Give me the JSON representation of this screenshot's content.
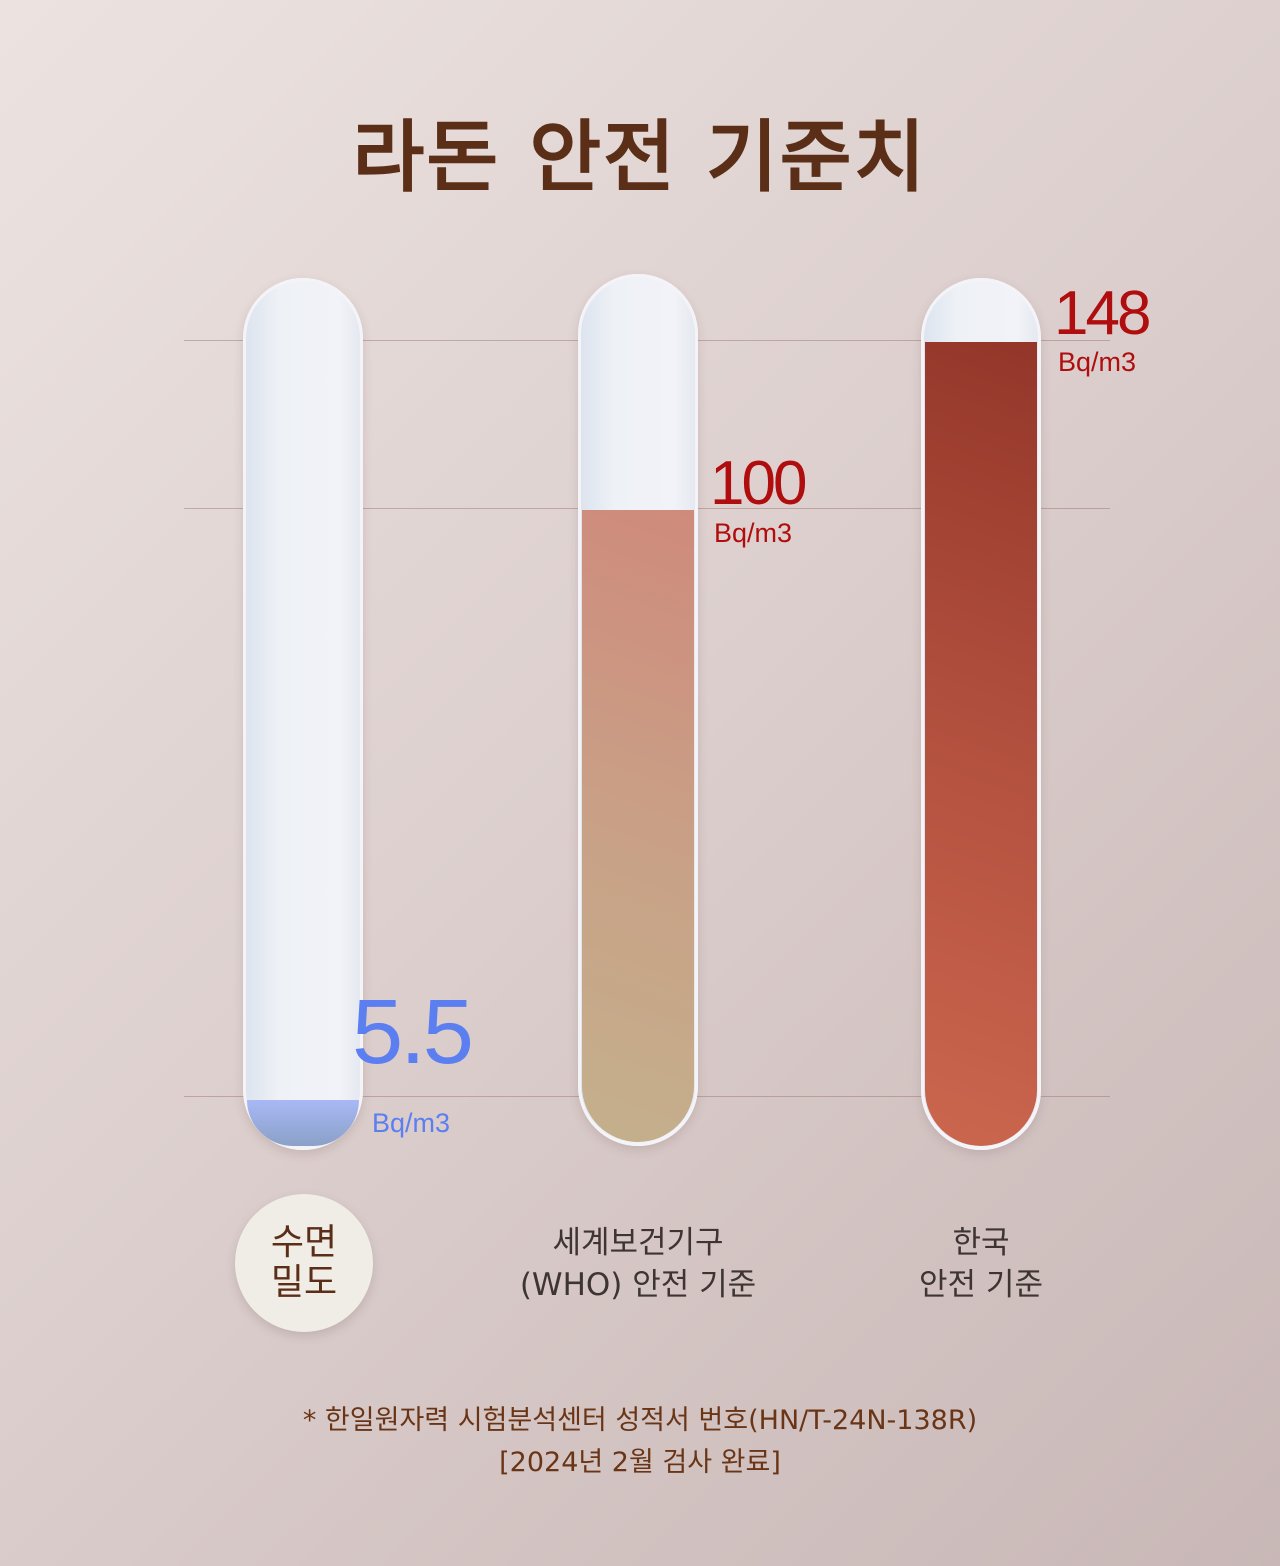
{
  "title": "라돈 안전 기준치",
  "chart_data": {
    "type": "bar",
    "title": "라돈 안전 기준치",
    "unit": "Bq/m3",
    "categories": [
      "수면밀도",
      "세계보건기구 (WHO) 안전 기준",
      "한국 안전 기준"
    ],
    "values": [
      5.5,
      100,
      148
    ],
    "value_labels": [
      "5.5",
      "100",
      "148"
    ],
    "colors": [
      "#8fa6e8",
      "#c9a080",
      "#a8402f"
    ],
    "label_colors": [
      "#5b7ef0",
      "#b00e0e",
      "#b00e0e"
    ],
    "grid": true
  },
  "labels": {
    "brand_line1": "수면",
    "brand_line2": "밀도",
    "who_line1": "세계보건기구",
    "who_line2": "(WHO) 안전 기준",
    "korea_line1": "한국",
    "korea_line2": "안전 기준"
  },
  "footnote": {
    "line1": "* 한일원자력 시험분석센터 성적서 번호(HN/T-24N-138R)",
    "line2": "[2024년 2월 검사 완료]"
  }
}
